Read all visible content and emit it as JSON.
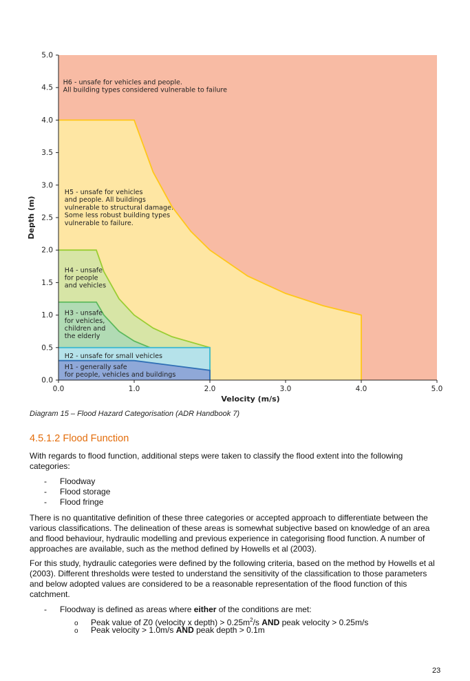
{
  "chart_data": {
    "type": "area",
    "xlabel": "Velocity (m/s)",
    "ylabel": "Depth (m)",
    "xlim": [
      0,
      5
    ],
    "ylim": [
      0,
      5
    ],
    "x_ticks": [
      "0.0",
      "1.0",
      "2.0",
      "3.0",
      "4.0",
      "5.0"
    ],
    "y_ticks": [
      "0.0",
      "0.5",
      "1.0",
      "1.5",
      "2.0",
      "2.5",
      "3.0",
      "3.5",
      "4.0",
      "4.5",
      "5.0"
    ],
    "grid": false,
    "zones": [
      {
        "name": "H6",
        "color": "#f8bba4",
        "lines": [
          "H6 - unsafe for vehicles and people.",
          "All building types considered vulnerable to failure"
        ]
      },
      {
        "name": "H5",
        "color": "#fee6a3",
        "edge": "#ffc61a",
        "lines": [
          "H5 - unsafe for vehicles",
          "and people. All buildings",
          "vulnerable to structural damage.",
          "Some less robust building types",
          "vulnerable to failure."
        ],
        "boundary": [
          [
            0,
            4
          ],
          [
            1,
            4
          ],
          [
            1.25,
            3.2
          ],
          [
            1.5,
            2.667
          ],
          [
            1.75,
            2.286
          ],
          [
            2,
            2
          ],
          [
            2.5,
            1.6
          ],
          [
            3,
            1.333
          ],
          [
            3.5,
            1.143
          ],
          [
            4,
            1
          ],
          [
            4,
            0
          ]
        ]
      },
      {
        "name": "H4",
        "color": "#d7e5a6",
        "edge": "#9acd32",
        "lines": [
          "H4 - unsafe",
          "for people",
          "and vehicles"
        ],
        "boundary": [
          [
            0,
            2
          ],
          [
            0.5,
            2
          ],
          [
            0.6,
            1.667
          ],
          [
            0.8,
            1.25
          ],
          [
            1,
            1
          ],
          [
            1.25,
            0.8
          ],
          [
            1.5,
            0.667
          ],
          [
            2,
            0.5
          ],
          [
            2,
            0
          ]
        ]
      },
      {
        "name": "H3",
        "color": "#b1dbb4",
        "edge": "#5bb85b",
        "lines": [
          "H3 - unsafe",
          "for vehicles,",
          "children and",
          "the elderly"
        ],
        "boundary": [
          [
            0,
            1.2
          ],
          [
            0.5,
            1.2
          ],
          [
            0.6,
            1.0
          ],
          [
            0.8,
            0.75
          ],
          [
            1,
            0.6
          ],
          [
            1.25,
            0.48
          ],
          [
            1.5,
            0.4
          ],
          [
            2,
            0.3
          ],
          [
            2,
            0
          ]
        ]
      },
      {
        "name": "H2",
        "color": "#b5e2ea",
        "edge": "#3fb9cf",
        "lines": [
          "H2 - unsafe for small vehicles"
        ],
        "boundary": [
          [
            0,
            0.5
          ],
          [
            2,
            0.5
          ],
          [
            2,
            0
          ]
        ]
      },
      {
        "name": "H1",
        "color": "#8fa8d8",
        "edge": "#2f6fb5",
        "lines": [
          "H1 - generally safe",
          "for people, vehicles and buildings"
        ],
        "boundary": [
          [
            0,
            0.3
          ],
          [
            1,
            0.3
          ],
          [
            2,
            0.15
          ],
          [
            2,
            0
          ]
        ]
      }
    ]
  },
  "caption": "Diagram 15 – Flood Hazard Categorisation (ADR Handbook 7)",
  "section_heading": "4.5.1.2  Flood Function",
  "intro": "With regards to flood function, additional steps were taken to classify the flood extent into the following categories:",
  "categories": [
    "Floodway",
    "Flood storage",
    "Flood fringe"
  ],
  "bullet_dash": "-",
  "para1": "There is no quantitative definition of these three categories or accepted approach to differentiate between the various classifications. The delineation of these areas is somewhat subjective based on knowledge of an area and flood behaviour, hydraulic modelling and previous experience in categorising flood function. A number of approaches are available, such as the method defined by Howells et al (2003).",
  "para2": "For this study, hydraulic categories were defined by the following criteria, based on the method by Howells et al (2003). Different thresholds were tested to understand the sensitivity of the classification to those parameters and below adopted values are considered to be a reasonable representation of the flood function of this catchment.",
  "floodway": {
    "before": "Floodway is defined as areas where ",
    "bold": "either",
    "after": " of the conditions are met:"
  },
  "sub_marker": "o",
  "conditions": [
    {
      "a": "Peak value of Z0 (velocity x depth) > 0.25m",
      "sup": "2",
      "b": "/s ",
      "bold": "AND",
      "c": " peak velocity > 0.25m/s"
    },
    {
      "a": "Peak velocity > 1.0m/s ",
      "bold": "AND",
      "c": " peak depth > 0.1m"
    }
  ],
  "page_number": "23"
}
